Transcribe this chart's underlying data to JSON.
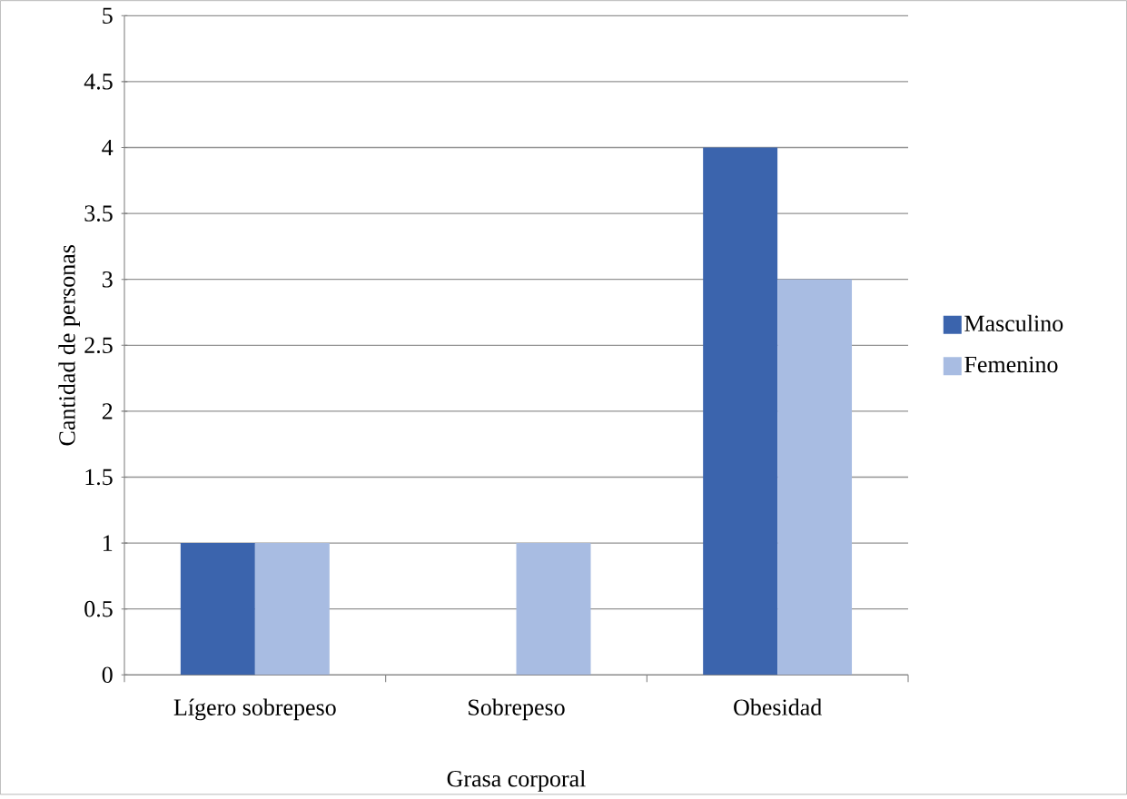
{
  "chart_data": {
    "type": "bar",
    "xlabel": "Grasa corporal",
    "ylabel": "Cantidad de personas",
    "categories": [
      "Lígero sobrepeso",
      "Sobrepeso",
      "Obesidad"
    ],
    "series": [
      {
        "name": "Masculino",
        "color": "#3b64ad",
        "values": [
          1,
          0,
          4
        ]
      },
      {
        "name": "Femenino",
        "color": "#a8bce2",
        "values": [
          1,
          1,
          3
        ]
      }
    ],
    "ylim": [
      0,
      5
    ],
    "yticks": [
      0,
      0.5,
      1,
      1.5,
      2,
      2.5,
      3,
      3.5,
      4,
      4.5,
      5
    ],
    "grid": "y",
    "legend": "right"
  }
}
